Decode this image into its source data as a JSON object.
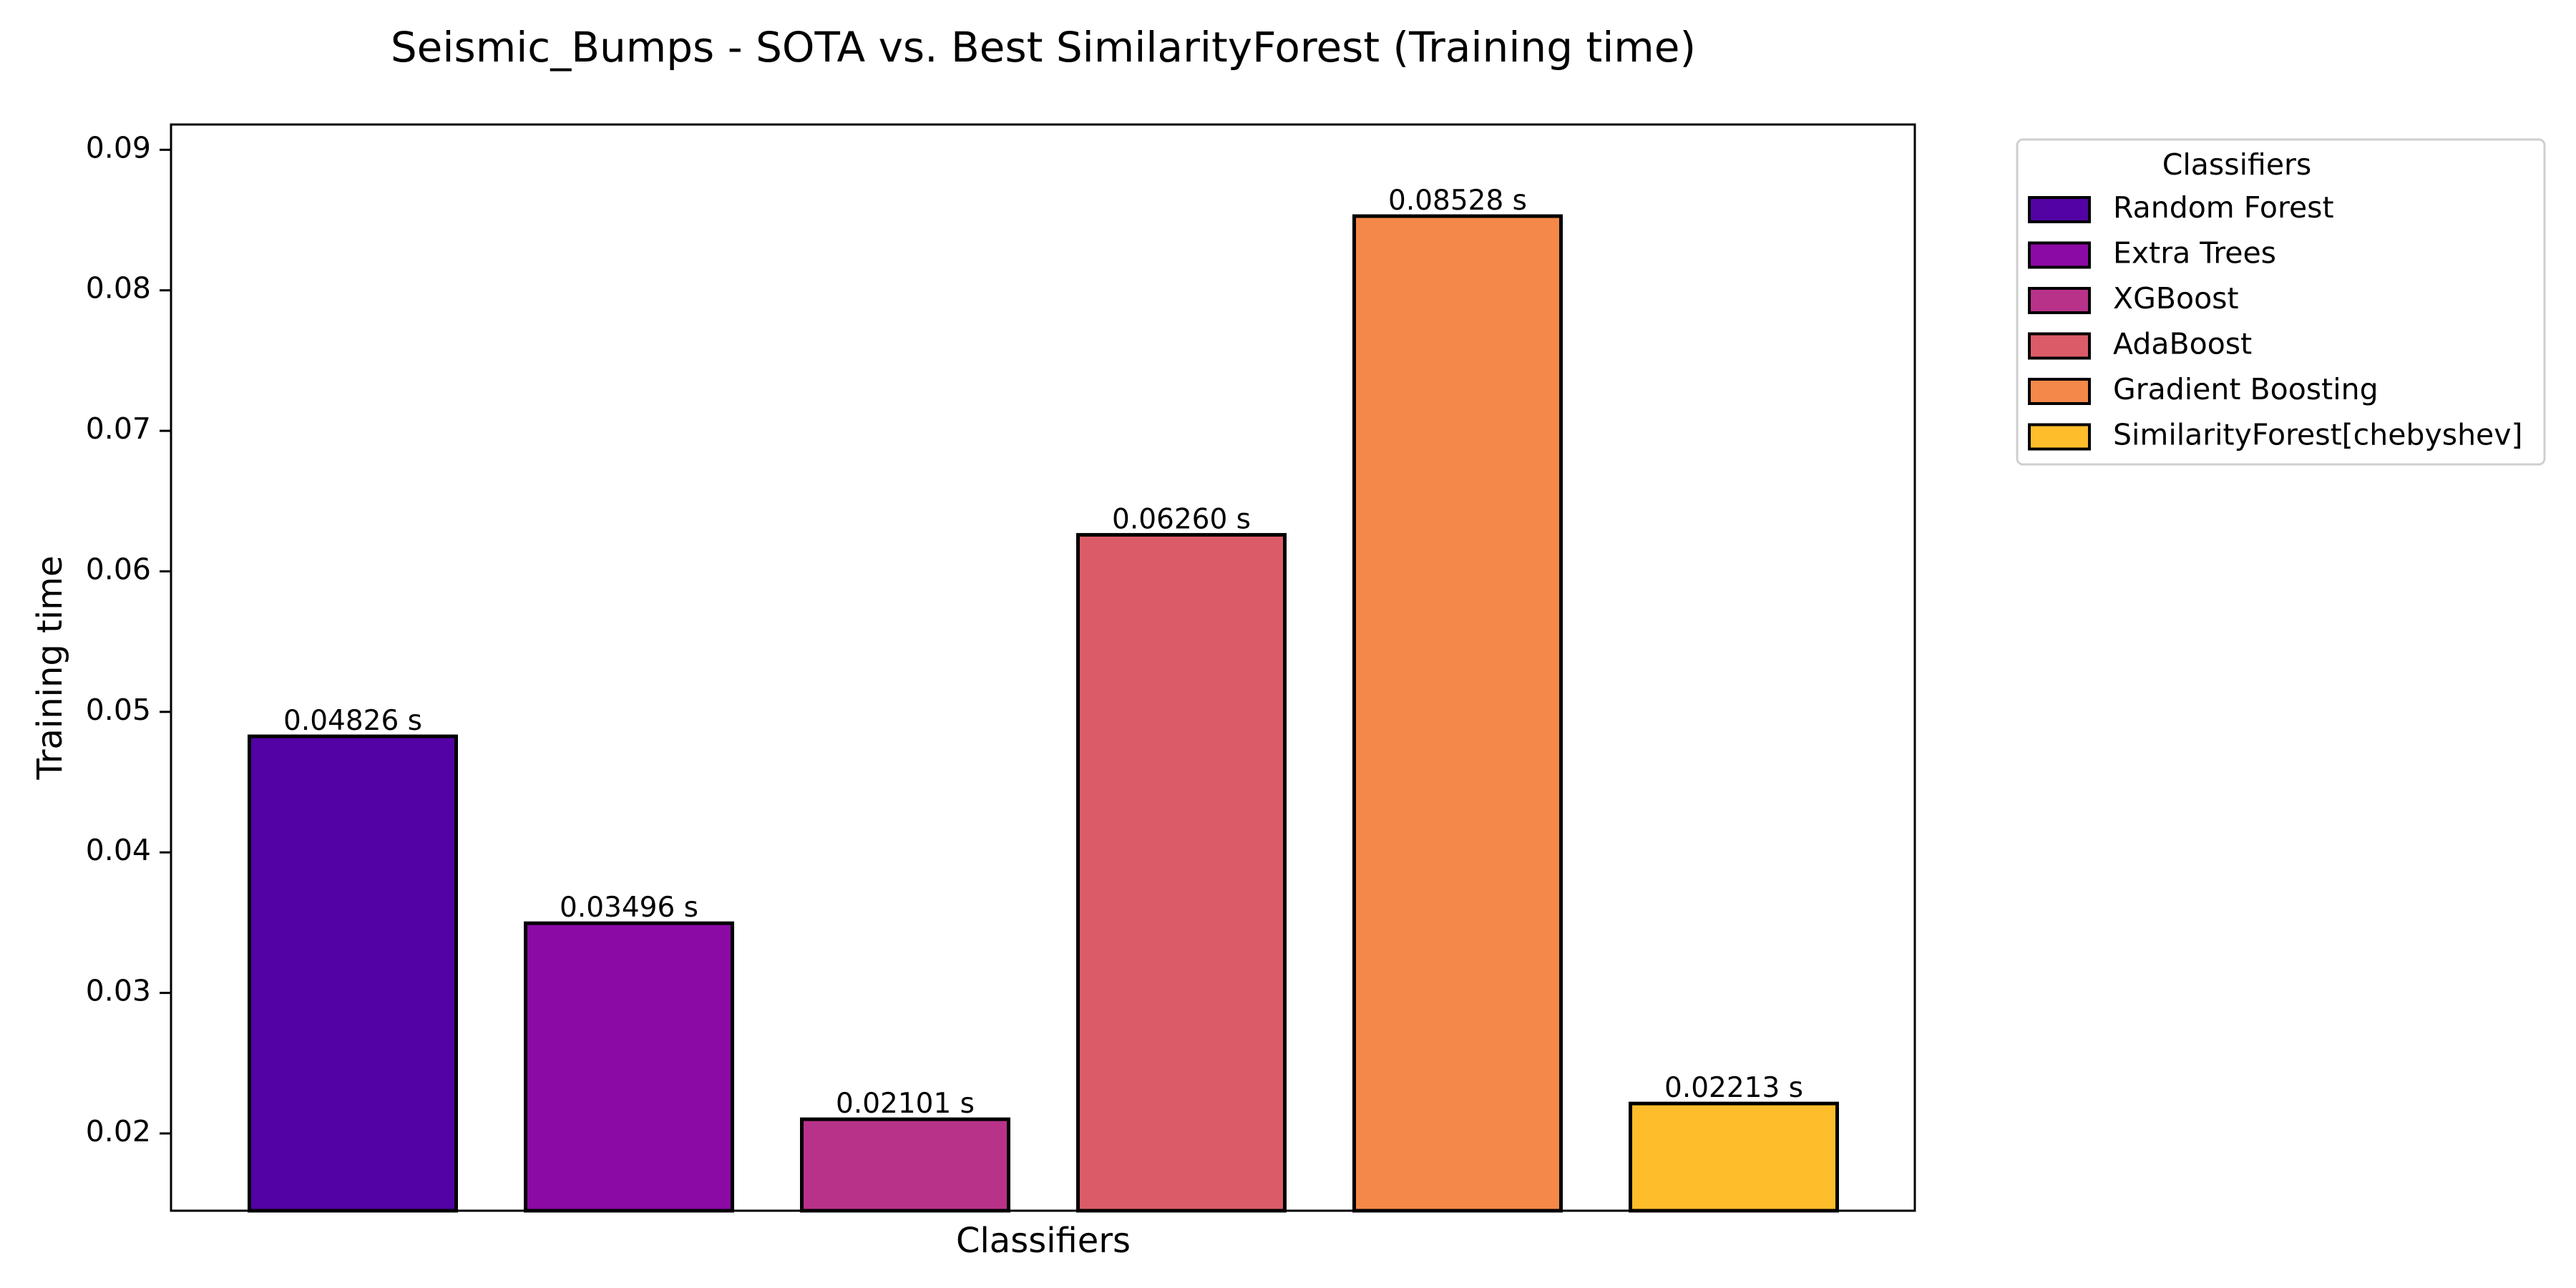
{
  "chart_data": {
    "type": "bar",
    "title": "Seismic_Bumps - SOTA vs. Best SimilarityForest (Training time)",
    "xlabel": "Classifiers",
    "ylabel": "Training time",
    "ylim": [
      0.0145,
      0.0918
    ],
    "yticks": [
      0.02,
      0.03,
      0.04,
      0.05,
      0.06,
      0.07,
      0.08,
      0.09
    ],
    "ytick_labels": [
      "0.02",
      "0.03",
      "0.04",
      "0.05",
      "0.06",
      "0.07",
      "0.08",
      "0.09"
    ],
    "grid": false,
    "legend": {
      "title": "Classifiers",
      "placement": "outside-upper-right"
    },
    "categories": [
      "Random Forest",
      "Extra Trees",
      "XGBoost",
      "AdaBoost",
      "Gradient Boosting",
      "SimilarityForest[chebyshev]"
    ],
    "values": [
      0.04826,
      0.03496,
      0.02101,
      0.0626,
      0.08528,
      0.02213
    ],
    "value_labels": [
      "0.04826 s",
      "0.03496 s",
      "0.02101 s",
      "0.06260 s",
      "0.08528 s",
      "0.02213 s"
    ],
    "colors": [
      "#5302a3",
      "#8b0aa5",
      "#b83289",
      "#db5c68",
      "#f48849",
      "#febd2a"
    ],
    "edge_color": "#000000"
  }
}
